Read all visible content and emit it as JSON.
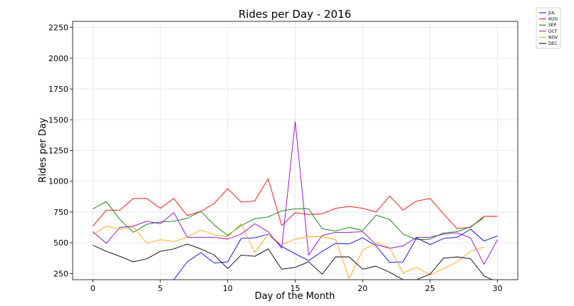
{
  "chart_data": {
    "type": "line",
    "title": "Rides per Day - 2016",
    "xlabel": "Day of the Month",
    "ylabel": "Rides per Day",
    "xlim": [
      -1.5,
      31.5
    ],
    "ylim": [
      200,
      2300
    ],
    "xticks": [
      0,
      5,
      10,
      15,
      20,
      25,
      30
    ],
    "yticks": [
      250,
      500,
      750,
      1000,
      1250,
      1500,
      1750,
      2000,
      2250
    ],
    "grid": true,
    "legend_position": "outside-top-right",
    "series": [
      {
        "name": "JUL",
        "color": "#0000ff",
        "x": [
          6,
          7,
          8,
          9,
          10,
          11,
          12,
          13,
          14,
          15,
          16,
          17,
          18,
          19,
          20,
          21,
          22,
          23,
          24,
          25,
          26,
          27,
          28,
          29,
          30
        ],
        "values": [
          200,
          345,
          420,
          335,
          345,
          535,
          540,
          570,
          470,
          410,
          355,
          430,
          495,
          490,
          540,
          475,
          340,
          345,
          540,
          485,
          535,
          545,
          610,
          515,
          555
        ]
      },
      {
        "name": "AUG",
        "color": "#ff0000",
        "x": [
          0,
          1,
          2,
          3,
          4,
          5,
          6,
          7,
          8,
          9,
          10,
          11,
          12,
          13,
          14,
          15,
          16,
          17,
          18,
          19,
          20,
          21,
          22,
          23,
          24,
          25,
          26,
          27,
          28,
          29,
          30
        ],
        "values": [
          635,
          765,
          765,
          860,
          860,
          780,
          860,
          720,
          755,
          820,
          940,
          830,
          840,
          1020,
          640,
          745,
          730,
          735,
          780,
          795,
          780,
          750,
          880,
          765,
          840,
          860,
          735,
          615,
          625,
          715,
          715
        ]
      },
      {
        "name": "SEP",
        "color": "#008000",
        "x": [
          0,
          1,
          2,
          3,
          4,
          5,
          6,
          7,
          8,
          9,
          10,
          11,
          12,
          13,
          14,
          15,
          16,
          17,
          18,
          19,
          20,
          21,
          22,
          23,
          24,
          25,
          26,
          27,
          28,
          29
        ],
        "values": [
          775,
          835,
          690,
          585,
          650,
          670,
          675,
          700,
          755,
          645,
          560,
          640,
          695,
          710,
          760,
          775,
          775,
          615,
          595,
          625,
          600,
          725,
          690,
          570,
          525,
          530,
          580,
          590,
          630,
          705
        ]
      },
      {
        "name": "OCT",
        "color": "#9400d3",
        "x": [
          0,
          1,
          2,
          3,
          4,
          5,
          6,
          7,
          8,
          9,
          10,
          11,
          12,
          13,
          14,
          15,
          16,
          17,
          18,
          19,
          20,
          21,
          22,
          23,
          24,
          25,
          26,
          27,
          28,
          29,
          30
        ],
        "values": [
          590,
          495,
          625,
          635,
          675,
          655,
          745,
          545,
          545,
          545,
          530,
          570,
          655,
          590,
          455,
          1485,
          400,
          560,
          585,
          585,
          590,
          485,
          455,
          475,
          545,
          545,
          570,
          580,
          540,
          325,
          525
        ]
      },
      {
        "name": "NOV",
        "color": "#ffa500",
        "x": [
          0,
          1,
          2,
          3,
          4,
          5,
          6,
          7,
          8,
          9,
          10,
          11,
          12,
          13,
          14,
          15,
          16,
          17,
          18,
          19,
          20,
          21,
          22,
          23,
          24,
          25,
          26,
          27,
          28,
          29
        ],
        "values": [
          565,
          635,
          610,
          630,
          495,
          525,
          510,
          545,
          605,
          565,
          550,
          655,
          420,
          570,
          485,
          530,
          550,
          550,
          525,
          210,
          440,
          500,
          460,
          255,
          300,
          240,
          290,
          345,
          430,
          465
        ]
      },
      {
        "name": "DEC",
        "color": "#000000",
        "x": [
          0,
          1,
          2,
          3,
          4,
          5,
          6,
          7,
          8,
          9,
          10,
          11,
          12,
          13,
          14,
          15,
          16,
          17,
          18,
          19,
          20,
          21,
          22,
          23,
          24,
          25,
          26,
          27,
          28,
          29,
          30
        ],
        "values": [
          480,
          430,
          390,
          345,
          370,
          430,
          450,
          490,
          450,
          400,
          290,
          400,
          390,
          450,
          285,
          300,
          345,
          245,
          385,
          385,
          285,
          310,
          260,
          200,
          200,
          245,
          375,
          385,
          370,
          230,
          180
        ]
      }
    ]
  }
}
